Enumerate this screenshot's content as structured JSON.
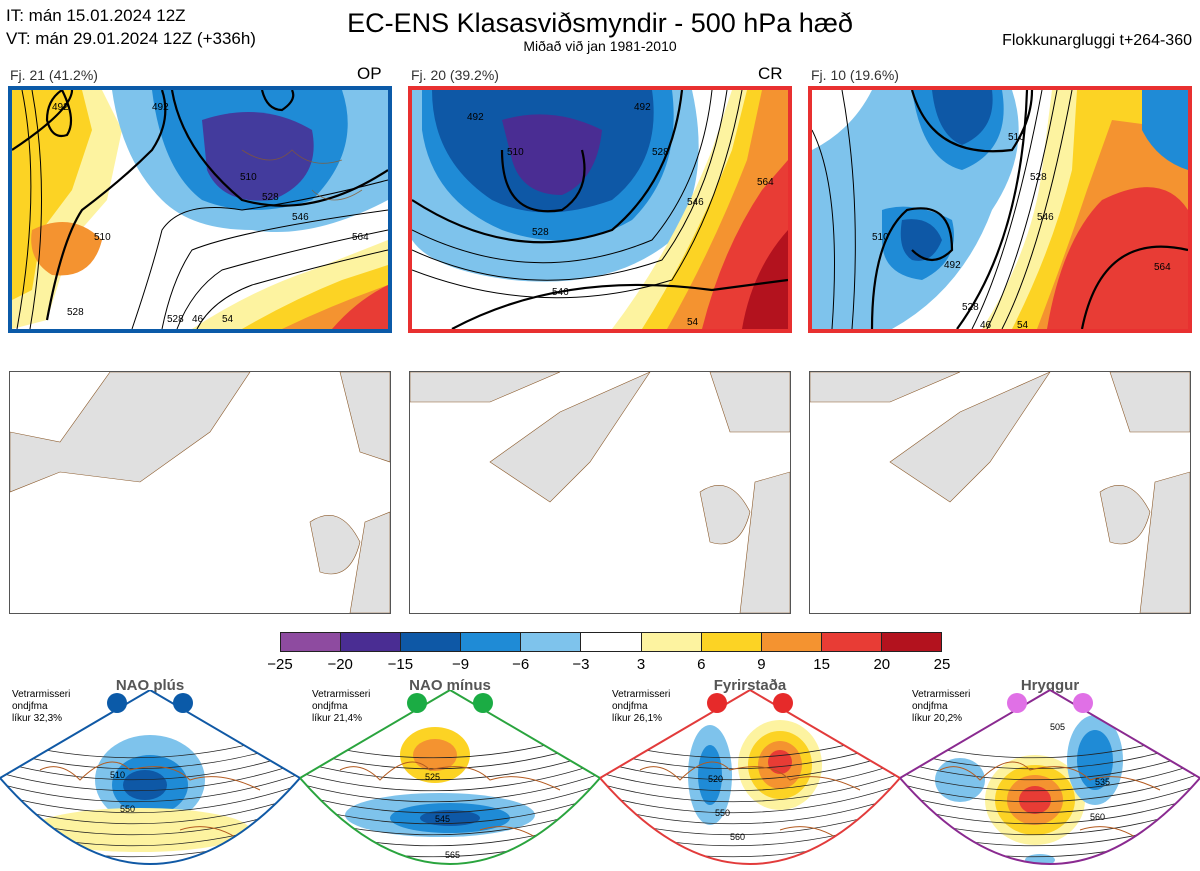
{
  "header": {
    "it_line": "IT: mán 15.01.2024 12Z",
    "vt_line": "VT: mán 29.01.2024 12Z  (+336h)",
    "title": "EC-ENS Klasasviðsmyndir - 500 hPa hæð",
    "subtitle": "Miðað við jan 1981-2010",
    "window": "Flokkunargluggi t+264-360"
  },
  "clusters": [
    {
      "label": "Fj. 21 (41.2%)",
      "tag": "OP",
      "border_color": "#0b5aa8",
      "contours": [
        "492",
        "492",
        "510",
        "510",
        "528",
        "528",
        "546",
        "564",
        "528",
        "46",
        "54"
      ]
    },
    {
      "label": "Fj. 20 (39.2%)",
      "tag": "CR",
      "border_color": "#e83030",
      "contours": [
        "492",
        "492",
        "510",
        "528",
        "528",
        "546",
        "546",
        "564",
        "54"
      ]
    },
    {
      "label": "Fj. 10 (19.6%)",
      "tag": "",
      "border_color": "#e83030",
      "contours": [
        "510",
        "528",
        "510",
        "492",
        "528",
        "546",
        "564",
        "46",
        "54"
      ]
    }
  ],
  "colorbar": {
    "ticks": [
      "−25",
      "−20",
      "−15",
      "−9",
      "−6",
      "−3",
      "3",
      "6",
      "9",
      "15",
      "20",
      "25"
    ],
    "colors": [
      "#8e4ba0",
      "#4a2d93",
      "#0e58a6",
      "#1f8bd6",
      "#7ec3ec",
      "#ffffff",
      "#fdf3a0",
      "#fcd324",
      "#f49330",
      "#e83c35",
      "#b3121e"
    ]
  },
  "regimes": [
    {
      "title": "NAO plús",
      "note": [
        "Vetrarmisseri",
        "ondjfma",
        "líkur 32,3%"
      ],
      "marker_color": "#0b5aa8",
      "border_color": "#1059a5",
      "contours": [
        "510",
        "550"
      ]
    },
    {
      "title": "NAO mínus",
      "note": [
        "Vetrarmisseri",
        "ondjfma",
        "líkur 21,4%"
      ],
      "marker_color": "#1bac44",
      "border_color": "#2aa43e",
      "contours": [
        "525",
        "545",
        "565"
      ]
    },
    {
      "title": "Fyrirstaða",
      "note": [
        "Vetrarmisseri",
        "ondjfma",
        "líkur 26,1%"
      ],
      "marker_color": "#e62a2a",
      "border_color": "#e23b3b",
      "contours": [
        "520",
        "550",
        "560"
      ]
    },
    {
      "title": "Hryggur",
      "note": [
        "Vetrarmisseri",
        "ondjfma",
        "líkur 20,2%"
      ],
      "marker_color": "#e070e6",
      "border_color": "#8a2a90",
      "contours": [
        "505",
        "535",
        "560"
      ]
    }
  ]
}
